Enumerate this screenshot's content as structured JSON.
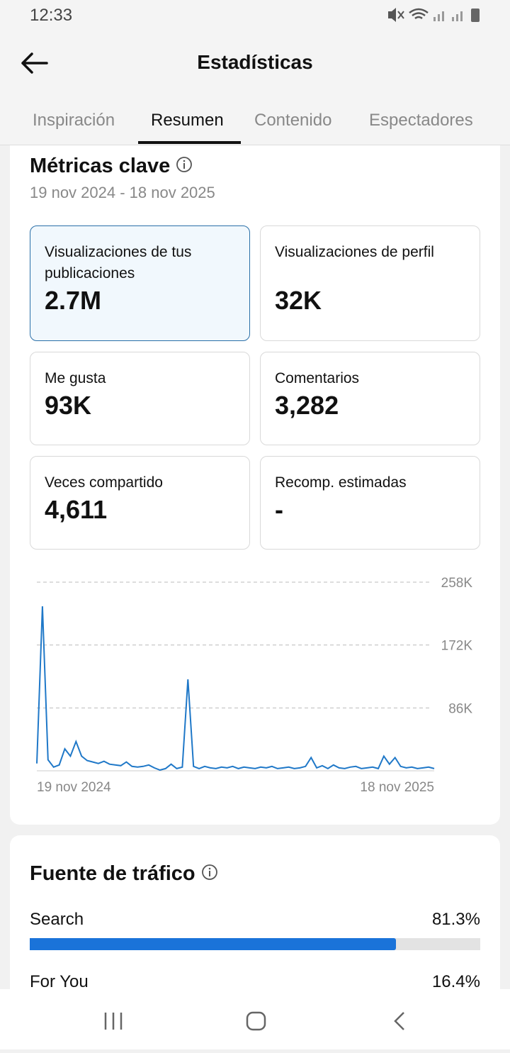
{
  "status_bar": {
    "time": "12:33"
  },
  "header": {
    "title": "Estadísticas"
  },
  "tabs": [
    "Inspiración",
    "Resumen",
    "Contenido",
    "Espectadores"
  ],
  "key_metrics": {
    "title": "Métricas clave",
    "date_range": "19 nov 2024 - 18 nov 2025",
    "cards": [
      {
        "label": "Visualizaciones de tus publicaciones",
        "value": "2.7M"
      },
      {
        "label": "Visualizaciones de perfil",
        "value": "32K"
      },
      {
        "label": "Me gusta",
        "value": "93K"
      },
      {
        "label": "Comentarios",
        "value": "3,282"
      },
      {
        "label": "Veces compartido",
        "value": "4,611"
      },
      {
        "label": "Recomp. estimadas",
        "value": "-"
      }
    ]
  },
  "chart": {
    "type": "line",
    "color": "#1f78c8",
    "x_labels": [
      "19 nov 2024",
      "18 nov 2025"
    ],
    "values": [
      10000,
      225000,
      15000,
      5000,
      8000,
      30000,
      20000,
      40000,
      20000,
      14000,
      12000,
      10000,
      13000,
      9000,
      8000,
      7000,
      12000,
      6000,
      5000,
      6000,
      8000,
      4000,
      1000,
      3000,
      9000,
      3000,
      5000,
      125000,
      6000,
      3000,
      6000,
      4000,
      3000,
      5000,
      4000,
      6000,
      3000,
      5000,
      4000,
      3000,
      5000,
      4000,
      6000,
      3000,
      4000,
      5000,
      3000,
      4000,
      6000,
      18000,
      4000,
      7000,
      3000,
      8000,
      4000,
      3000,
      5000,
      6000,
      3000,
      4000,
      5000,
      3000,
      20000,
      9000,
      18000,
      6000,
      4000,
      5000,
      3000,
      4000,
      5000,
      3000
    ],
    "ylim": [
      0,
      258000
    ],
    "yticks": [
      {
        "value": 86000,
        "label": "86K"
      },
      {
        "value": 172000,
        "label": "172K"
      },
      {
        "value": 258000,
        "label": "258K"
      }
    ],
    "grid": true
  },
  "traffic_source": {
    "title": "Fuente de tráfico",
    "items": [
      {
        "name": "Search",
        "value": 81.3,
        "label": "81.3%"
      },
      {
        "name": "For You",
        "value": 16.4,
        "label": "16.4%"
      }
    ]
  }
}
